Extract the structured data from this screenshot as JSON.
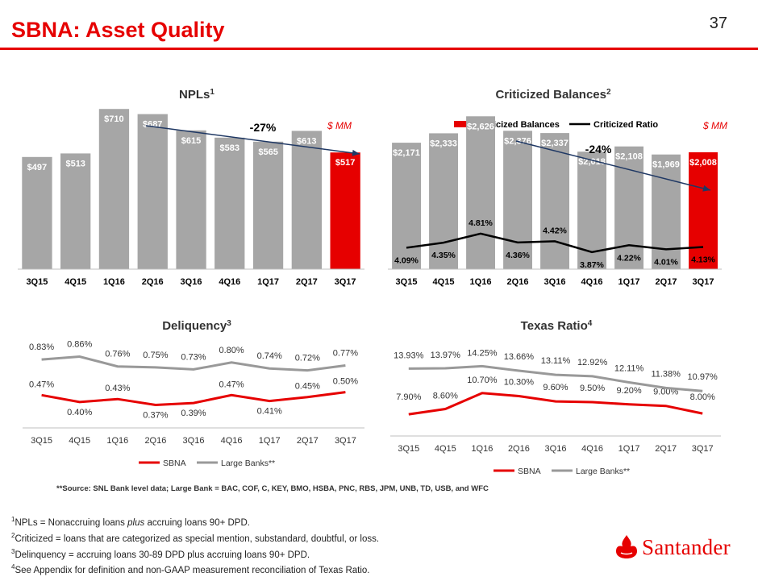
{
  "header": {
    "title": "SBNA: Asset Quality",
    "page_number": "37"
  },
  "chart_data": [
    {
      "id": "npls",
      "type": "bar",
      "title": "NPLs",
      "title_sup": "1",
      "unit_note": "$ MM",
      "trend_label": "-27%",
      "categories": [
        "3Q15",
        "4Q15",
        "1Q16",
        "2Q16",
        "3Q16",
        "4Q16",
        "1Q17",
        "2Q17",
        "3Q17"
      ],
      "values": [
        497,
        513,
        710,
        687,
        615,
        583,
        565,
        613,
        517
      ],
      "value_labels": [
        "$497",
        "$513",
        "$710",
        "$687",
        "$615",
        "$583",
        "$565",
        "$613",
        "$517"
      ],
      "colors": {
        "bar": "#a6a6a6",
        "highlight": "#e60000",
        "arrow": "#1f3864"
      },
      "highlight_last": true
    },
    {
      "id": "criticized",
      "type": "bar",
      "title": "Criticized Balances",
      "title_sup": "2",
      "unit_note": "$ MM",
      "trend_label": "-24%",
      "legend": [
        "Criticized Balances",
        "Criticized Ratio"
      ],
      "categories": [
        "3Q15",
        "4Q15",
        "1Q16",
        "2Q16",
        "3Q16",
        "4Q16",
        "1Q17",
        "2Q17",
        "3Q17"
      ],
      "values": [
        2171,
        2333,
        2626,
        2376,
        2337,
        2018,
        2108,
        1969,
        2008
      ],
      "value_labels": [
        "$2,171",
        "$2,333",
        "$2,626",
        "$2,376",
        "$2,337",
        "$2,018",
        "$2,108",
        "$1,969",
        "$2,008"
      ],
      "ratio": [
        4.09,
        4.35,
        4.81,
        4.36,
        4.42,
        3.87,
        4.22,
        4.01,
        4.13
      ],
      "ratio_labels": [
        "4.09%",
        "4.35%",
        "4.81%",
        "4.36%",
        "4.42%",
        "3.87%",
        "4.22%",
        "4.01%",
        "4.13%"
      ],
      "colors": {
        "bar": "#a6a6a6",
        "highlight": "#e60000",
        "line": "#000000",
        "arrow": "#1f3864"
      },
      "highlight_last": true
    },
    {
      "id": "delinquency",
      "type": "line",
      "title": "Deliquency",
      "title_sup": "3",
      "categories": [
        "3Q15",
        "4Q15",
        "1Q16",
        "2Q16",
        "3Q16",
        "4Q16",
        "1Q17",
        "2Q17",
        "3Q17"
      ],
      "series": [
        {
          "name": "SBNA",
          "values": [
            0.47,
            0.4,
            0.43,
            0.37,
            0.39,
            0.47,
            0.41,
            0.45,
            0.5
          ],
          "labels": [
            "0.47%",
            "0.40%",
            "0.43%",
            "0.37%",
            "0.39%",
            "0.47%",
            "0.41%",
            "0.45%",
            "0.50%"
          ],
          "color": "#e60000"
        },
        {
          "name": "Large Banks**",
          "values": [
            0.83,
            0.86,
            0.76,
            0.75,
            0.73,
            0.8,
            0.74,
            0.72,
            0.77
          ],
          "labels": [
            "0.83%",
            "0.86%",
            "0.76%",
            "0.75%",
            "0.73%",
            "0.80%",
            "0.74%",
            "0.72%",
            "0.77%"
          ],
          "color": "#999999"
        }
      ]
    },
    {
      "id": "texas",
      "type": "line",
      "title": "Texas Ratio",
      "title_sup": "4",
      "categories": [
        "3Q15",
        "4Q15",
        "1Q16",
        "2Q16",
        "3Q16",
        "4Q16",
        "1Q17",
        "2Q17",
        "3Q17"
      ],
      "series": [
        {
          "name": "SBNA",
          "values": [
            7.9,
            8.6,
            10.7,
            10.3,
            9.6,
            9.5,
            9.2,
            9.0,
            8.0
          ],
          "labels": [
            "7.90%",
            "8.60%",
            "10.70%",
            "10.30%",
            "9.60%",
            "9.50%",
            "9.20%",
            "9.00%",
            "8.00%"
          ],
          "color": "#e60000"
        },
        {
          "name": "Large Banks**",
          "values": [
            13.93,
            13.97,
            14.25,
            13.66,
            13.11,
            12.92,
            12.11,
            11.38,
            10.97
          ],
          "labels": [
            "13.93%",
            "13.97%",
            "14.25%",
            "13.66%",
            "13.11%",
            "12.92%",
            "12.11%",
            "11.38%",
            "10.97%"
          ],
          "color": "#999999"
        }
      ]
    }
  ],
  "source_note": "**Source: SNL Bank level data; Large Bank = BAC, COF, C, KEY, BMO, HSBA, PNC, RBS, JPM, UNB, TD, USB, and WFC",
  "footnotes": [
    {
      "num": "1",
      "text_pre": "NPLs = Nonaccruing loans ",
      "text_italic": "plus",
      "text_post": " accruing loans 90+ DPD."
    },
    {
      "num": "2",
      "text_pre": "Criticized = loans that are categorized as  special mention, substandard, doubtful, or loss.",
      "text_italic": "",
      "text_post": ""
    },
    {
      "num": "3",
      "text_pre": "Delinquency = accruing loans 30-89 DPD plus accruing loans 90+ DPD.",
      "text_italic": "",
      "text_post": ""
    },
    {
      "num": "4",
      "text_pre": "See Appendix for definition and non-GAAP measurement reconciliation of Texas Ratio.",
      "text_italic": "",
      "text_post": ""
    }
  ],
  "logo": {
    "text": "Santander",
    "icon": "santander-flame-icon",
    "color": "#e60000"
  }
}
